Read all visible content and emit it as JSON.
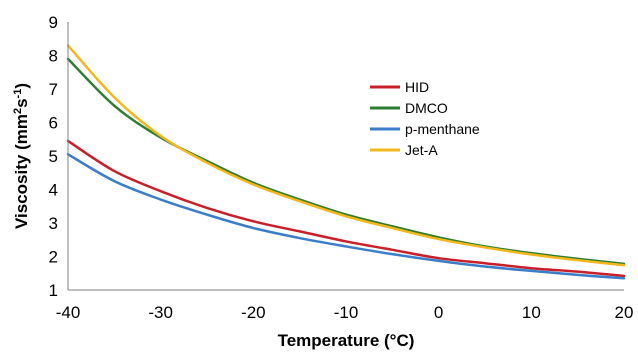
{
  "chart_data": {
    "type": "line",
    "title": "",
    "xlabel": "Temperature (°C)",
    "ylabel_parts": [
      "Viscosity (mm",
      "2",
      "s",
      "-1",
      ")"
    ],
    "xlim": [
      -40,
      20
    ],
    "ylim": [
      1,
      9
    ],
    "x_ticks": [
      -40,
      -30,
      -20,
      -10,
      0,
      10,
      20
    ],
    "y_ticks": [
      1,
      2,
      3,
      4,
      5,
      6,
      7,
      8,
      9
    ],
    "grid": false,
    "legend_position": "center-right",
    "x": [
      -40,
      -35,
      -30,
      -25,
      -20,
      -15,
      -10,
      -5,
      0,
      5,
      10,
      15,
      20
    ],
    "series": [
      {
        "name": "HID",
        "color": "#c8202a",
        "values": [
          5.45,
          4.55,
          3.95,
          3.45,
          3.05,
          2.75,
          2.45,
          2.2,
          1.95,
          1.8,
          1.65,
          1.55,
          1.42
        ]
      },
      {
        "name": "DMCO",
        "color": "#2e7d32",
        "values": [
          7.9,
          6.5,
          5.55,
          4.85,
          4.2,
          3.7,
          3.25,
          2.9,
          2.57,
          2.3,
          2.1,
          1.93,
          1.78
        ]
      },
      {
        "name": "p-menthane",
        "color": "#3a7dc9",
        "values": [
          5.05,
          4.25,
          3.7,
          3.25,
          2.85,
          2.55,
          2.3,
          2.07,
          1.87,
          1.7,
          1.57,
          1.45,
          1.35
        ]
      },
      {
        "name": "Jet-A",
        "color": "#f4b81e",
        "values": [
          8.3,
          6.75,
          5.6,
          4.8,
          4.15,
          3.65,
          3.2,
          2.85,
          2.52,
          2.27,
          2.06,
          1.89,
          1.74
        ]
      }
    ]
  }
}
